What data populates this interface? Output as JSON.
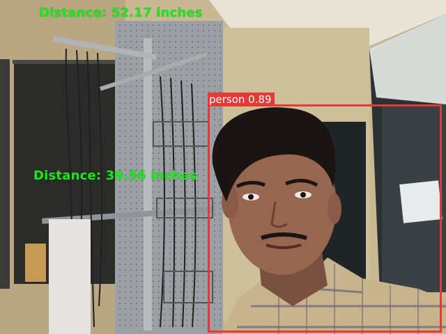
{
  "overlays": {
    "distance_top": "Distance: 52.17 inches",
    "distance_middle": "Distance: 39.56 inches"
  },
  "detection": {
    "label": "person 0.89",
    "box_color": "#e53935"
  },
  "colors": {
    "overlay_text": "#1ee61e",
    "detection_box": "#e53935"
  }
}
